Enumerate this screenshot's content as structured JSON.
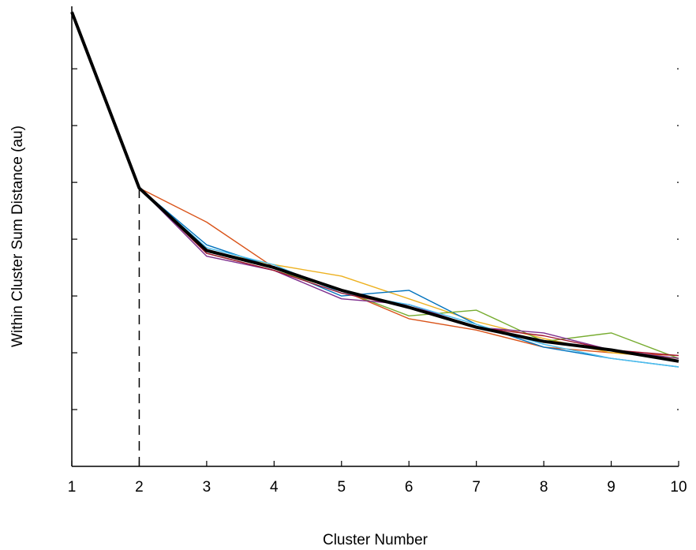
{
  "chart_data": {
    "type": "line",
    "xlabel": "Cluster Number",
    "ylabel": "Within Cluster Sum Distance (au)",
    "x": [
      1,
      2,
      3,
      4,
      5,
      6,
      7,
      8,
      9,
      10
    ],
    "xlim": [
      1,
      10
    ],
    "ylim": [
      0,
      8.1
    ],
    "y_ticks_labeled": false,
    "grid": false,
    "legend": "none",
    "marker_line": {
      "x": 2,
      "style": "dashed"
    },
    "series": [
      {
        "color": "#D95319",
        "values": [
          null,
          4.9,
          4.3,
          3.5,
          3.1,
          2.6,
          2.4,
          2.1,
          2.0,
          1.95
        ]
      },
      {
        "color": "#EDB120",
        "values": [
          null,
          4.9,
          3.8,
          3.55,
          3.35,
          2.95,
          2.55,
          2.25,
          2.0,
          1.9
        ]
      },
      {
        "color": "#0072BD",
        "values": [
          null,
          4.9,
          3.9,
          3.5,
          3.0,
          3.1,
          2.5,
          2.1,
          1.9,
          1.75
        ]
      },
      {
        "color": "#77AC30",
        "values": [
          null,
          4.9,
          3.75,
          3.45,
          3.1,
          2.65,
          2.75,
          2.2,
          2.35,
          1.9
        ]
      },
      {
        "color": "#7E2F8E",
        "values": [
          null,
          4.9,
          3.7,
          3.45,
          2.95,
          2.85,
          2.45,
          2.35,
          2.05,
          1.9
        ]
      },
      {
        "color": "#4DBEEE",
        "values": [
          null,
          4.9,
          3.85,
          3.55,
          3.05,
          2.85,
          2.5,
          2.15,
          1.9,
          1.75
        ]
      },
      {
        "color": "#A2142F",
        "values": [
          null,
          4.9,
          3.75,
          3.45,
          3.05,
          2.8,
          2.45,
          2.3,
          2.05,
          1.95
        ]
      },
      {
        "color": "#000000",
        "width": 4,
        "values": [
          8.0,
          4.9,
          3.8,
          3.5,
          3.1,
          2.8,
          2.45,
          2.2,
          2.05,
          1.85
        ]
      }
    ]
  }
}
